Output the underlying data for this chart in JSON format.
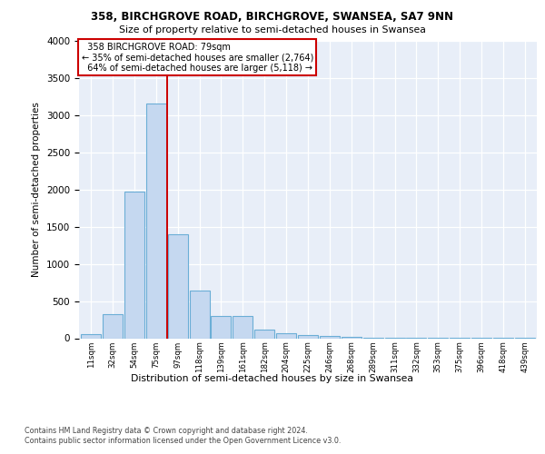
{
  "title1": "358, BIRCHGROVE ROAD, BIRCHGROVE, SWANSEA, SA7 9NN",
  "title2": "Size of property relative to semi-detached houses in Swansea",
  "xlabel": "Distribution of semi-detached houses by size in Swansea",
  "ylabel": "Number of semi-detached properties",
  "categories": [
    "11sqm",
    "32sqm",
    "54sqm",
    "75sqm",
    "97sqm",
    "118sqm",
    "139sqm",
    "161sqm",
    "182sqm",
    "204sqm",
    "225sqm",
    "246sqm",
    "268sqm",
    "289sqm",
    "311sqm",
    "332sqm",
    "353sqm",
    "375sqm",
    "396sqm",
    "418sqm",
    "439sqm"
  ],
  "values": [
    50,
    320,
    1970,
    3160,
    1400,
    640,
    305,
    305,
    110,
    70,
    45,
    30,
    20,
    10,
    5,
    5,
    3,
    3,
    3,
    3,
    3
  ],
  "bar_color": "#c5d8f0",
  "bar_edge_color": "#6baed6",
  "property_label": "358 BIRCHGROVE ROAD: 79sqm",
  "smaller_pct": "35%",
  "smaller_count": "2,764",
  "larger_pct": "64%",
  "larger_count": "5,118",
  "vline_x_index": 3.5,
  "annotation_box_color": "#ffffff",
  "annotation_box_edge": "#cc0000",
  "vline_color": "#cc0000",
  "footer1": "Contains HM Land Registry data © Crown copyright and database right 2024.",
  "footer2": "Contains public sector information licensed under the Open Government Licence v3.0.",
  "ylim": [
    0,
    4000
  ],
  "plot_bg_color": "#e8eef8"
}
